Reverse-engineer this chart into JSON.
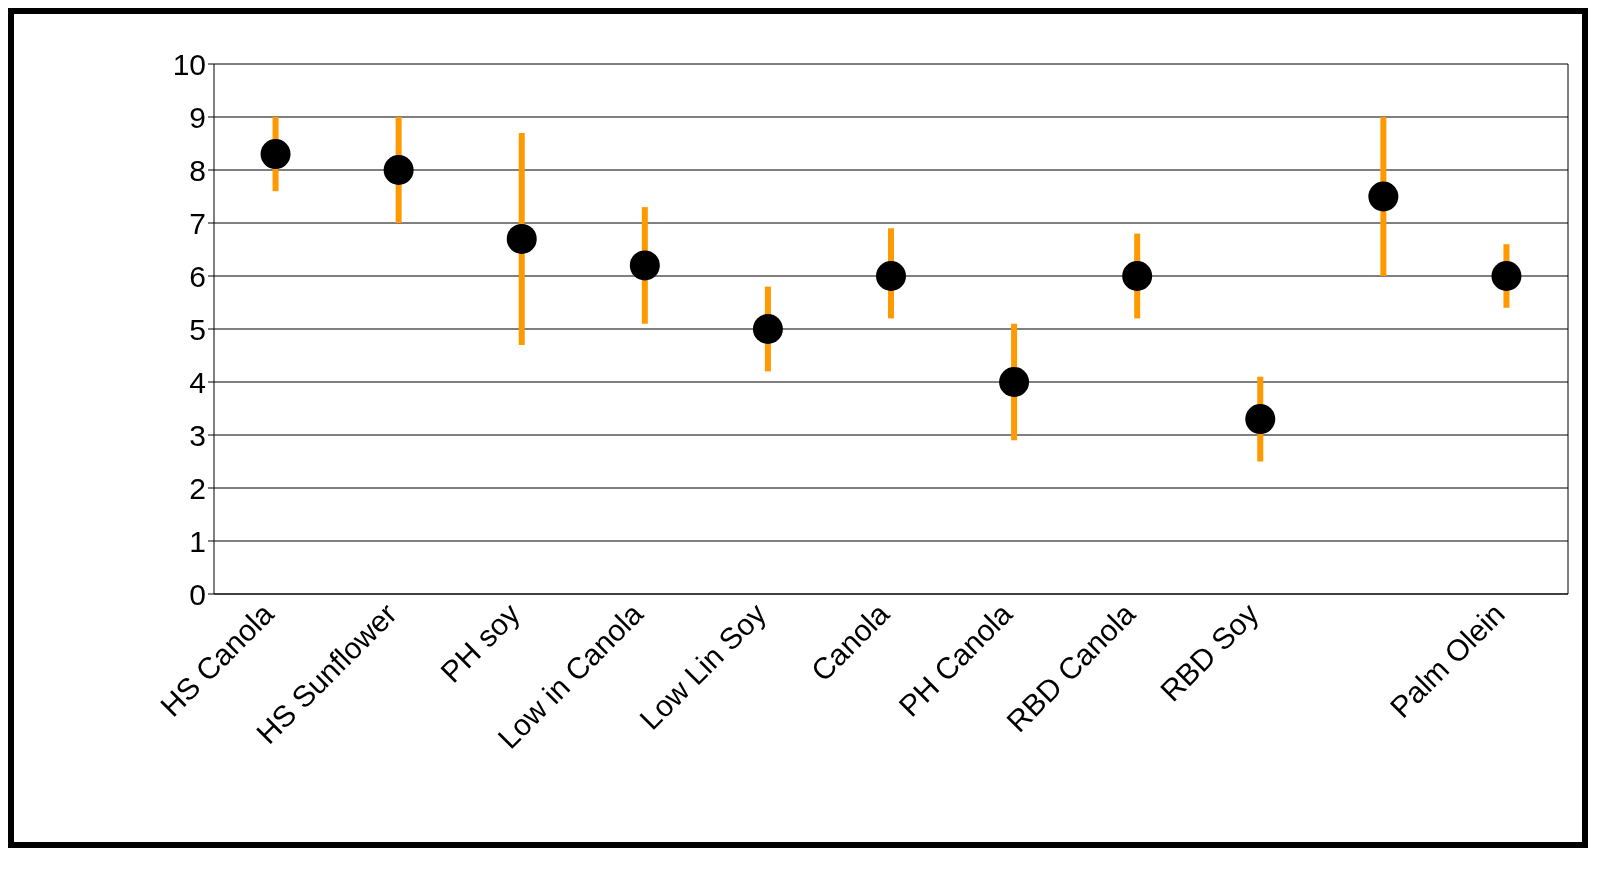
{
  "chart_data": {
    "type": "scatter",
    "categories": [
      "HS Canola",
      "HS Sunflower",
      "PH soy",
      "Low in Canola",
      "Low Lin Soy",
      "Canola",
      "PH Canola",
      "RBD Canola",
      "RBD Soy",
      null,
      "Palm Olein"
    ],
    "series": [
      {
        "color": "#000000",
        "values": [
          8.3,
          8.0,
          6.7,
          6.2,
          5.0,
          6.0,
          4.0,
          6.0,
          3.3,
          7.5,
          6.0
        ],
        "errors": [
          [
            7.6,
            9.0
          ],
          [
            7.0,
            9.0
          ],
          [
            4.7,
            8.7
          ],
          [
            5.1,
            7.3
          ],
          [
            4.2,
            5.8
          ],
          [
            5.2,
            6.9
          ],
          [
            2.9,
            5.1
          ],
          [
            5.2,
            6.8
          ],
          [
            2.5,
            4.1
          ],
          [
            6.0,
            9.0
          ],
          [
            5.4,
            6.6
          ]
        ]
      }
    ],
    "ylim": [
      0,
      10
    ],
    "yticks": [
      0,
      1,
      2,
      3,
      4,
      5,
      6,
      7,
      8,
      9,
      10
    ],
    "grid": "y",
    "marker": "circle",
    "legend": false
  }
}
